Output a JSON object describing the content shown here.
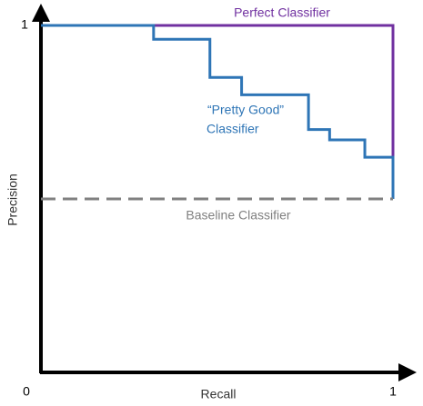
{
  "chart_data": {
    "type": "line",
    "xlabel": "Recall",
    "ylabel": "Precision",
    "xlim": [
      0,
      1
    ],
    "ylim": [
      0,
      1
    ],
    "xticks": [
      0,
      1
    ],
    "yticks": [
      1
    ],
    "grid": false,
    "series": [
      {
        "name": "Perfect Classifier",
        "color": "#7030a0",
        "x": [
          0,
          1,
          1
        ],
        "values": [
          1,
          1,
          0.5
        ]
      },
      {
        "name": "“Pretty Good” Classifier",
        "label_lines": [
          "“Pretty Good”",
          "Classifier"
        ],
        "color": "#2e75b6",
        "x": [
          0,
          0.32,
          0.32,
          0.48,
          0.48,
          0.57,
          0.57,
          0.76,
          0.76,
          0.82,
          0.82,
          0.92,
          0.92,
          1,
          1
        ],
        "values": [
          1,
          1,
          0.96,
          0.96,
          0.85,
          0.85,
          0.8,
          0.8,
          0.7,
          0.7,
          0.67,
          0.67,
          0.62,
          0.62,
          0.5
        ]
      },
      {
        "name": "Baseline Classifier",
        "color": "#808080",
        "dashed": true,
        "x": [
          0,
          1
        ],
        "values": [
          0.5,
          0.5
        ]
      }
    ]
  }
}
